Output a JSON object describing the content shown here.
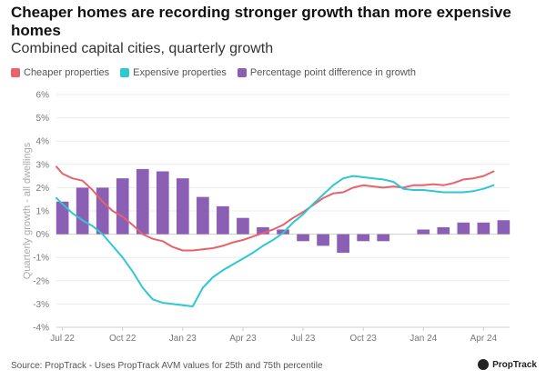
{
  "header": {
    "title": "Cheaper homes are recording stronger growth than more expensive homes",
    "subtitle": "Combined capital cities, quarterly growth"
  },
  "footer": {
    "source": "Source: PropTrack - Uses PropTrack AVM values for 25th and 75th percentile",
    "brand": "PropTrack"
  },
  "colors": {
    "cheaper": "#e8616b",
    "expensive": "#2ec8d3",
    "difference": "#8a5fb4"
  },
  "chart_data": {
    "type": "bar+line",
    "title": "Cheaper homes are recording stronger growth than more expensive homes",
    "subtitle": "Combined capital cities, quarterly growth",
    "ylabel": "Quarterly growth - all dwellings",
    "ylim": [
      -4,
      6
    ],
    "yticks": [
      "-4%",
      "-3%",
      "-2%",
      "-1%",
      "0%",
      "1%",
      "2%",
      "3%",
      "4%",
      "5%",
      "6%"
    ],
    "xlim_months": [
      -0.3,
      22.3
    ],
    "x_ticks": [
      {
        "label": "Jul 22",
        "month": 0
      },
      {
        "label": "Oct 22",
        "month": 3
      },
      {
        "label": "Jan 23",
        "month": 6
      },
      {
        "label": "Apr 23",
        "month": 9
      },
      {
        "label": "Jul 23",
        "month": 12
      },
      {
        "label": "Oct 23",
        "month": 15
      },
      {
        "label": "Jan 24",
        "month": 18
      },
      {
        "label": "Apr 24",
        "month": 21
      }
    ],
    "legend": [
      "Cheaper properties",
      "Expensive properties",
      "Percentage point difference in growth"
    ],
    "series": [
      {
        "name": "Cheaper properties",
        "kind": "line",
        "points": [
          [
            -0.3,
            2.9
          ],
          [
            0,
            2.6
          ],
          [
            0.5,
            2.4
          ],
          [
            1,
            2.3
          ],
          [
            1.5,
            1.9
          ],
          [
            2,
            1.4
          ],
          [
            2.5,
            1.0
          ],
          [
            3,
            0.75
          ],
          [
            3.5,
            0.4
          ],
          [
            4,
            0.0
          ],
          [
            4.5,
            -0.2
          ],
          [
            5,
            -0.3
          ],
          [
            5.5,
            -0.55
          ],
          [
            6,
            -0.7
          ],
          [
            6.5,
            -0.7
          ],
          [
            7,
            -0.65
          ],
          [
            7.5,
            -0.6
          ],
          [
            8,
            -0.5
          ],
          [
            8.5,
            -0.35
          ],
          [
            9,
            -0.25
          ],
          [
            9.5,
            -0.1
          ],
          [
            10,
            0.05
          ],
          [
            10.5,
            0.2
          ],
          [
            11,
            0.4
          ],
          [
            11.5,
            0.7
          ],
          [
            12,
            0.95
          ],
          [
            12.5,
            1.25
          ],
          [
            13,
            1.55
          ],
          [
            13.5,
            1.75
          ],
          [
            14,
            1.8
          ],
          [
            14.5,
            2.0
          ],
          [
            15,
            2.1
          ],
          [
            15.5,
            2.05
          ],
          [
            16,
            2.0
          ],
          [
            16.5,
            2.05
          ],
          [
            17,
            2.0
          ],
          [
            17.5,
            2.1
          ],
          [
            18,
            2.1
          ],
          [
            18.5,
            2.15
          ],
          [
            19,
            2.1
          ],
          [
            19.5,
            2.2
          ],
          [
            20,
            2.35
          ],
          [
            20.5,
            2.4
          ],
          [
            21,
            2.5
          ],
          [
            21.5,
            2.7
          ]
        ]
      },
      {
        "name": "Expensive properties",
        "kind": "line",
        "points": [
          [
            -0.3,
            1.55
          ],
          [
            0,
            1.3
          ],
          [
            0.5,
            0.9
          ],
          [
            1,
            0.6
          ],
          [
            1.5,
            0.35
          ],
          [
            2,
            0.0
          ],
          [
            2.5,
            -0.5
          ],
          [
            3,
            -1.0
          ],
          [
            3.5,
            -1.6
          ],
          [
            4,
            -2.3
          ],
          [
            4.5,
            -2.8
          ],
          [
            5,
            -2.95
          ],
          [
            5.5,
            -3.0
          ],
          [
            6,
            -3.05
          ],
          [
            6.5,
            -3.1
          ],
          [
            7,
            -2.3
          ],
          [
            7.5,
            -1.85
          ],
          [
            8,
            -1.55
          ],
          [
            8.5,
            -1.3
          ],
          [
            9,
            -1.05
          ],
          [
            9.5,
            -0.8
          ],
          [
            10,
            -0.5
          ],
          [
            10.5,
            -0.25
          ],
          [
            11,
            0.05
          ],
          [
            11.5,
            0.5
          ],
          [
            12,
            0.85
          ],
          [
            12.5,
            1.3
          ],
          [
            13,
            1.7
          ],
          [
            13.5,
            2.1
          ],
          [
            14,
            2.4
          ],
          [
            14.5,
            2.5
          ],
          [
            15,
            2.45
          ],
          [
            15.5,
            2.4
          ],
          [
            16,
            2.35
          ],
          [
            16.5,
            2.25
          ],
          [
            17,
            1.95
          ],
          [
            17.5,
            1.9
          ],
          [
            18,
            1.9
          ],
          [
            18.5,
            1.85
          ],
          [
            19,
            1.8
          ],
          [
            19.5,
            1.8
          ],
          [
            20,
            1.8
          ],
          [
            20.5,
            1.85
          ],
          [
            21,
            1.95
          ],
          [
            21.5,
            2.1
          ]
        ]
      },
      {
        "name": "Percentage point difference in growth",
        "kind": "bar",
        "points": [
          [
            0,
            1.4
          ],
          [
            1,
            2.0
          ],
          [
            2,
            2.0
          ],
          [
            3,
            2.4
          ],
          [
            4,
            2.8
          ],
          [
            5,
            2.7
          ],
          [
            6,
            2.4
          ],
          [
            7,
            1.6
          ],
          [
            8,
            1.2
          ],
          [
            9,
            0.7
          ],
          [
            10,
            0.3
          ],
          [
            11,
            0.2
          ],
          [
            12,
            -0.3
          ],
          [
            13,
            -0.5
          ],
          [
            14,
            -0.8
          ],
          [
            15,
            -0.3
          ],
          [
            16,
            -0.3
          ],
          [
            17,
            0.0
          ],
          [
            18,
            0.2
          ],
          [
            19,
            0.3
          ],
          [
            20,
            0.5
          ],
          [
            21,
            0.5
          ],
          [
            22,
            0.6
          ]
        ]
      }
    ]
  }
}
